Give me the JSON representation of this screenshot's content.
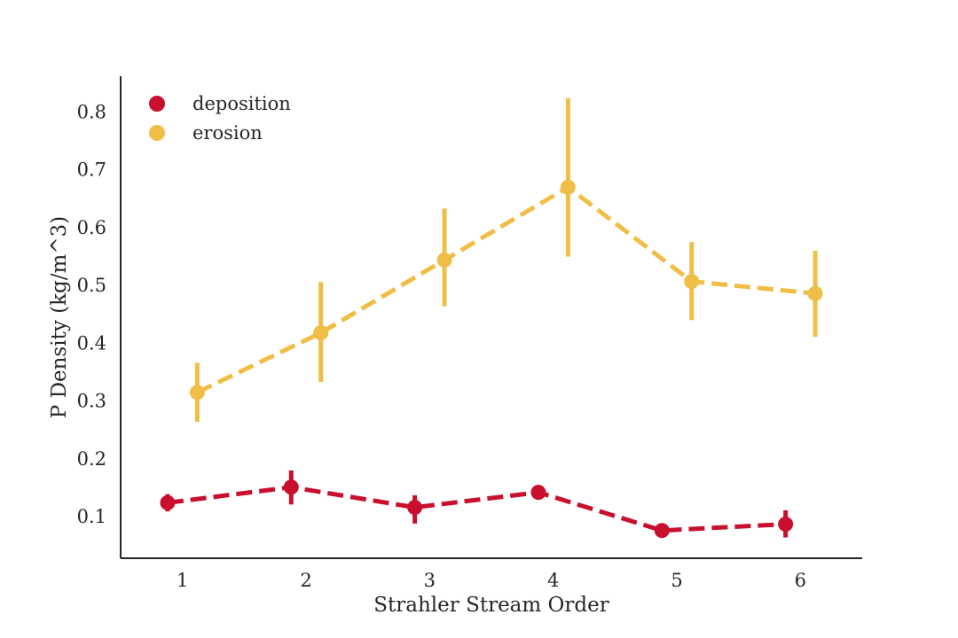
{
  "chart_data": {
    "type": "line",
    "title": "",
    "xlabel": "Strahler Stream Order",
    "ylabel": "P Density (kg/m^3)",
    "categories": [
      "1",
      "2",
      "3",
      "4",
      "5",
      "6"
    ],
    "xlim": [
      0.5,
      6.5
    ],
    "ylim": [
      0.028,
      0.862
    ],
    "yticks": [
      0.1,
      0.2,
      0.3,
      0.4,
      0.5,
      0.6,
      0.7,
      0.8
    ],
    "ytick_labels": [
      "0.1",
      "0.2",
      "0.3",
      "0.4",
      "0.5",
      "0.6",
      "0.7",
      "0.8"
    ],
    "grid": false,
    "legend": {
      "position": "top-left"
    },
    "series": [
      {
        "name": "deposition",
        "color": "#c8102e",
        "x": [
          1,
          2,
          3,
          4,
          5,
          6
        ],
        "values": [
          0.124,
          0.151,
          0.116,
          0.142,
          0.076,
          0.087
        ],
        "ci_low": [
          0.109,
          0.121,
          0.088,
          0.131,
          0.068,
          0.064
        ],
        "ci_high": [
          0.139,
          0.18,
          0.137,
          0.153,
          0.084,
          0.111
        ]
      },
      {
        "name": "erosion",
        "color": "#f0be46",
        "x": [
          1,
          2,
          3,
          4,
          5,
          6
        ],
        "values": [
          0.315,
          0.418,
          0.544,
          0.67,
          0.507,
          0.486
        ],
        "ci_low": [
          0.264,
          0.333,
          0.464,
          0.55,
          0.44,
          0.411
        ],
        "ci_high": [
          0.366,
          0.506,
          0.633,
          0.824,
          0.575,
          0.56
        ]
      }
    ]
  }
}
